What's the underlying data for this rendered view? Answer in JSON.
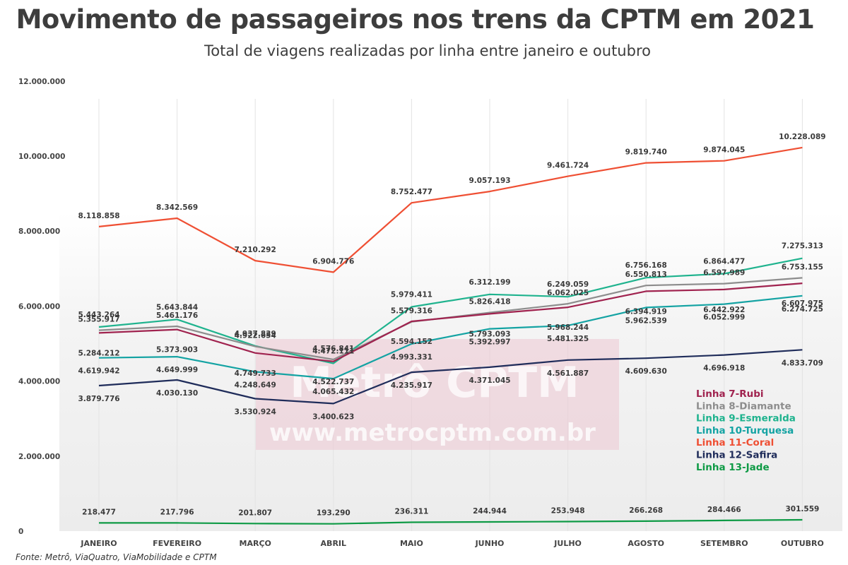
{
  "title": "Movimento de passageiros nos trens da CPTM em 2021",
  "subtitle": "Total de viagens realizadas por linha entre janeiro e outubro",
  "source": "Fonte: Metrô, ViaQuatro, ViaMobilidade e CPTM",
  "watermark": {
    "brand": "Metrô CPTM",
    "url": "www.metrocptm.com.br"
  },
  "chart_data": {
    "type": "line",
    "categories": [
      "JANEIRO",
      "FEVEREIRO",
      "MARÇO",
      "ABRIL",
      "MAIO",
      "JUNHO",
      "JULHO",
      "AGOSTO",
      "SETEMBRO",
      "OUTUBRO"
    ],
    "y_ticks": [
      "0",
      "2.000.000",
      "4.000.000",
      "6.000.000",
      "8.000.000",
      "10.000.000",
      "12.000.000"
    ],
    "ylim": [
      0,
      12000000
    ],
    "legend_position": "bottom-right",
    "grid": "vertical",
    "series": [
      {
        "name": "Linha 11-Coral",
        "color": "#ef4f33",
        "values": [
          8118858,
          8342569,
          7210292,
          6904776,
          8752477,
          9057193,
          9461724,
          9819740,
          9874045,
          10228089
        ],
        "labels": [
          "8.118.858",
          "8.342.569",
          "7.210.292",
          "6.904.776",
          "8.752.477",
          "9.057.193",
          "9.461.724",
          "9.819.740",
          "9.874.045",
          "10.228.089"
        ]
      },
      {
        "name": "Linha 9-Esmeralda",
        "color": "#1fb38e",
        "values": [
          5443264,
          5643844,
          4937839,
          4472111,
          5979411,
          6312199,
          6249059,
          6756168,
          6864477,
          7275313
        ],
        "labels": [
          "5.443.264",
          "5.643.844",
          "4.937.839",
          "4.472.111",
          "5.979.411",
          "6.312.199",
          "6.249.059",
          "6.756.168",
          "6.864.477",
          "7.275.313"
        ]
      },
      {
        "name": "Linha 8-Diamante",
        "color": "#8d8d8d",
        "values": [
          5355917,
          5461176,
          4922654,
          4576841,
          5579316,
          5826418,
          6062025,
          6550813,
          6597989,
          6753155
        ],
        "labels": [
          "5.355.917",
          "5.461.176",
          "4.922.654",
          "4.576.841",
          "5.579.316",
          "5.826.418",
          "6.062.025",
          "6.550.813",
          "6.597.989",
          "6.753.155"
        ]
      },
      {
        "name": "Linha 7-Rubi",
        "color": "#a0234f",
        "values": [
          5284212,
          5373903,
          4749733,
          4522737,
          5594152,
          5793093,
          5968244,
          6394919,
          6442922,
          6607975
        ],
        "labels": [
          "5.284.212",
          "5.373.903",
          "4.749.733",
          "4.522.737",
          "5.594.152",
          "5.793.093",
          "5.968.244",
          "6.394.919",
          "6.442.922",
          "6.607.975"
        ]
      },
      {
        "name": "Linha 10-Turquesa",
        "color": "#14a3a3",
        "values": [
          4619942,
          4649999,
          4248649,
          4065432,
          4993331,
          5392997,
          5481325,
          5962539,
          6052999,
          6274725
        ],
        "labels": [
          "4.619.942",
          "4.649.999",
          "4.248.649",
          "4.065.432",
          "4.993.331",
          "5.392.997",
          "5.481.325",
          "5.962.539",
          "6.052.999",
          "6.274.725"
        ]
      },
      {
        "name": "Linha 12-Safira",
        "color": "#1f2c5a",
        "values": [
          3879776,
          4030130,
          3530924,
          3400623,
          4235917,
          4371045,
          4561887,
          4609630,
          4696918,
          4833709
        ],
        "labels": [
          "3.879.776",
          "4.030.130",
          "3.530.924",
          "3.400.623",
          "4.235.917",
          "4.371.045",
          "4.561.887",
          "4.609.630",
          "4.696.918",
          "4.833.709"
        ]
      },
      {
        "name": "Linha 13-Jade",
        "color": "#0e9a45",
        "values": [
          218477,
          217796,
          201807,
          193290,
          236311,
          244944,
          253948,
          266268,
          284466,
          301559
        ],
        "labels": [
          "218.477",
          "217.796",
          "201.807",
          "193.290",
          "236.311",
          "244.944",
          "253.948",
          "266.268",
          "284.466",
          "301.559"
        ]
      }
    ],
    "legend_order": [
      "Linha 7-Rubi",
      "Linha 8-Diamante",
      "Linha 9-Esmeralda",
      "Linha 10-Turquesa",
      "Linha 11-Coral",
      "Linha 12-Safira",
      "Linha 13-Jade"
    ]
  }
}
